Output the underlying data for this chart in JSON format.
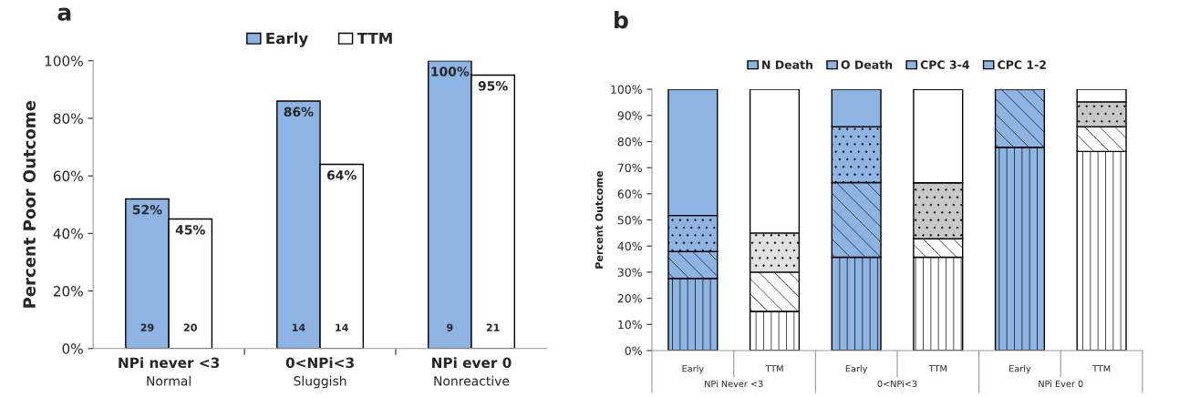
{
  "chart_data": [
    {
      "type": "bar",
      "title": "a",
      "ylabel": "Percent Poor Outcome",
      "categories": [
        "NPi never <3\nNormal",
        "0<NPi<3\nSluggish",
        "NPi ever 0\nNonreactive"
      ],
      "series": [
        {
          "name": "Early",
          "color": "#8eb4e3",
          "values": [
            52,
            86,
            100
          ],
          "value_labels": [
            "52%",
            "86%",
            "100%"
          ]
        },
        {
          "name": "TTM",
          "color": "#ffffff",
          "values": [
            45,
            64,
            95
          ],
          "value_labels": [
            "45%",
            "64%",
            "95%"
          ]
        }
      ],
      "annotations": [
        "29",
        "20",
        "14",
        "14",
        "9",
        "21"
      ],
      "ylim": [
        0,
        100
      ],
      "yticks": [
        {
          "value": 0,
          "label": "0%"
        },
        {
          "value": 20,
          "label": "20%"
        },
        {
          "value": 40,
          "label": "40%"
        },
        {
          "value": 60,
          "label": "60%"
        },
        {
          "value": 80,
          "label": "80%"
        },
        {
          "value": 100,
          "label": "100%"
        }
      ],
      "legend": "top",
      "grid": false
    },
    {
      "type": "bar",
      "title": "b",
      "ylabel": "Percent Outcome",
      "stacked": true,
      "categories": [
        "Early",
        "TTM",
        "Early",
        "TTM",
        "Early",
        "TTM"
      ],
      "series": [
        {
          "name": "N Death",
          "colors": [
            "#8eb4e3",
            "#ffffff",
            "#8eb4e3",
            "#ffffff",
            "#8eb4e3",
            "#ffffff"
          ],
          "values": [
            27.6,
            15,
            35.7,
            35.7,
            77.8,
            76.2
          ]
        },
        {
          "name": "O Death",
          "colors": [
            "#8eb4e3",
            "#ffffff",
            "#8eb4e3",
            "#ffffff",
            "#8eb4e3",
            "#ffffff"
          ],
          "values": [
            10.3,
            15,
            28.6,
            7.1,
            22.2,
            9.5
          ]
        },
        {
          "name": "CPC 3-4",
          "colors": [
            "#8eb4e3",
            "#e0e0e0",
            "#8eb4e3",
            "#c8c8c8",
            "#8eb4e3",
            "#c8c8c8"
          ],
          "values": [
            13.8,
            15,
            21.4,
            21.4,
            null,
            9.5
          ]
        },
        {
          "name": "CPC 1-2",
          "colors": [
            "#8eb4e3",
            "#ffffff",
            "#8eb4e3",
            "#ffffff",
            "#8eb4e3",
            "#ffffff"
          ],
          "values": [
            48.3,
            55,
            14.3,
            35.7,
            null,
            4.8
          ]
        }
      ],
      "annotations": [
        "NPi Never <3",
        "0<NPi<3",
        "NPi Ever 0"
      ],
      "ylim": [
        0,
        100
      ],
      "yticks": [
        {
          "value": 0,
          "label": "0%"
        },
        {
          "value": 10,
          "label": "10%"
        },
        {
          "value": 20,
          "label": "20%"
        },
        {
          "value": 30,
          "label": "30%"
        },
        {
          "value": 40,
          "label": "40%"
        },
        {
          "value": 50,
          "label": "50%"
        },
        {
          "value": 60,
          "label": "60%"
        },
        {
          "value": 70,
          "label": "70%"
        },
        {
          "value": 80,
          "label": "80%"
        },
        {
          "value": 90,
          "label": "90%"
        },
        {
          "value": 100,
          "label": "100%"
        }
      ],
      "legend": "top",
      "grid": false
    }
  ]
}
